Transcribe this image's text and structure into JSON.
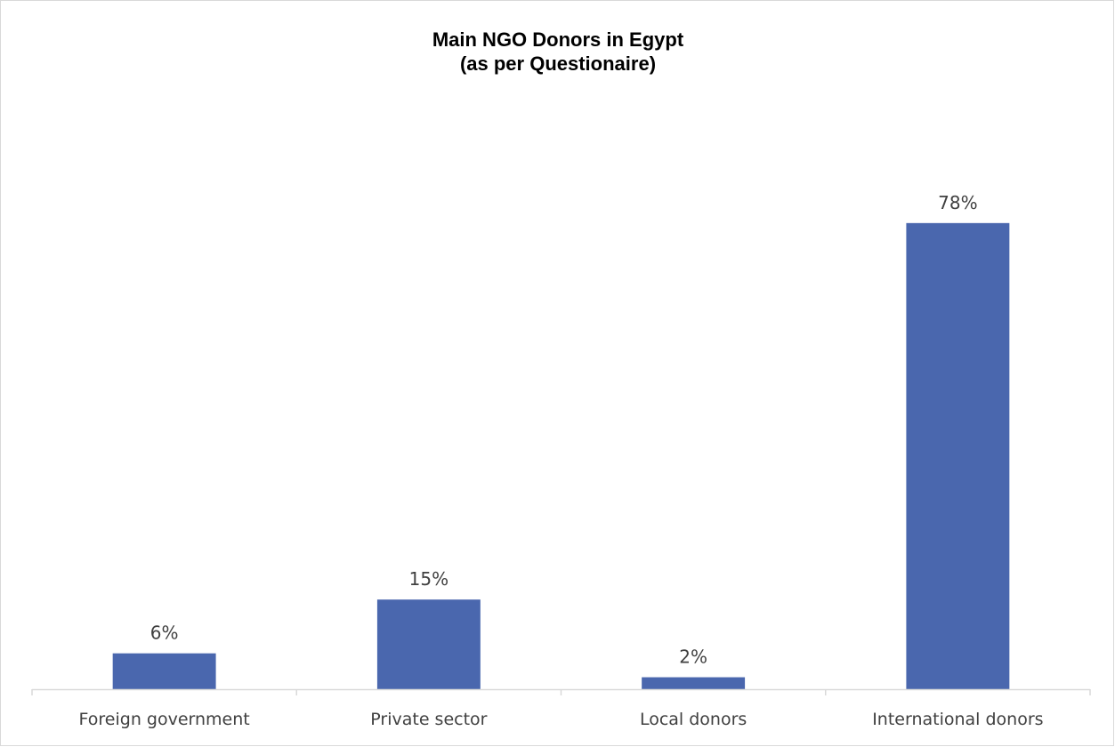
{
  "chart_data": {
    "type": "bar",
    "title": "Main NGO Donors in Egypt",
    "subtitle": "(as per Questionaire)",
    "categories": [
      "Foreign government",
      "Private sector",
      "Local donors",
      "International donors"
    ],
    "values": [
      6,
      15,
      2,
      78
    ],
    "data_labels": [
      "6%",
      "15%",
      "2%",
      "78%"
    ],
    "ylim": [
      0,
      100
    ],
    "grid": false,
    "legend": "none",
    "bar_color": "#4a67ae",
    "axis_color": "#d9d9d9",
    "label_color": "#404040"
  }
}
